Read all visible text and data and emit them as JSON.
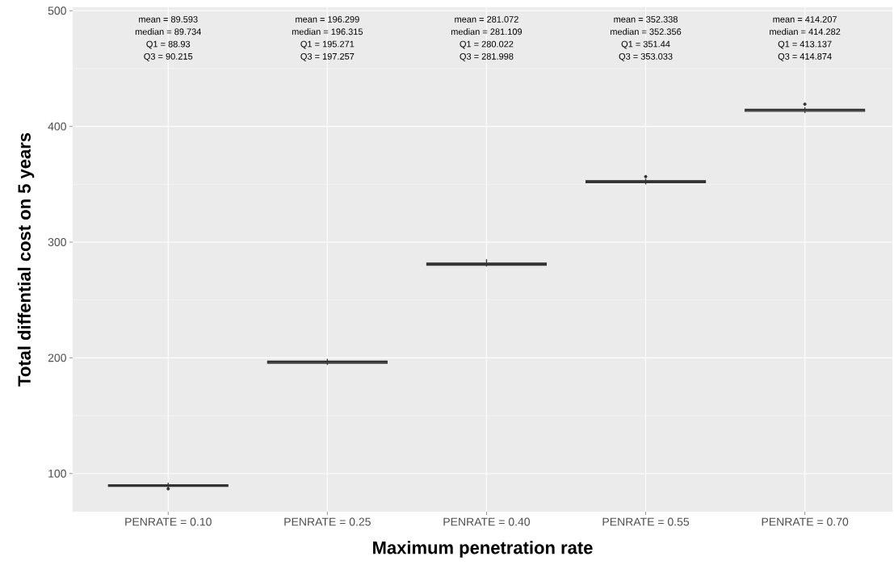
{
  "chart_data": {
    "type": "box",
    "xlabel": "Maximum penetration rate",
    "ylabel": "Total diffential cost on 5 years",
    "categories": [
      "PENRATE = 0.10",
      "PENRATE = 0.25",
      "PENRATE = 0.40",
      "PENRATE = 0.55",
      "PENRATE = 0.70"
    ],
    "boxes": [
      {
        "low": 87.9,
        "q1": 88.93,
        "median": 89.734,
        "q3": 90.215,
        "high": 92.1,
        "outliers": [
          86.8
        ]
      },
      {
        "low": 193.8,
        "q1": 195.271,
        "median": 196.315,
        "q3": 197.257,
        "high": 199.1
      },
      {
        "low": 278.9,
        "q1": 280.022,
        "median": 281.109,
        "q3": 281.998,
        "high": 285.2
      },
      {
        "low": 349.9,
        "q1": 351.44,
        "median": 352.356,
        "q3": 353.033,
        "high": 354.8,
        "outliers": [
          356.6
        ]
      },
      {
        "low": 411.6,
        "q1": 413.137,
        "median": 414.282,
        "q3": 414.874,
        "high": 416.6,
        "outliers": [
          419.2
        ]
      }
    ],
    "color": "#333333",
    "ylim": [
      67,
      503
    ],
    "yticks": [
      100,
      200,
      300,
      400,
      500
    ],
    "grid": true,
    "annotations": [
      "mean = 89.593",
      "median = 89.734",
      "Q1 = 88.93",
      "Q3 = 90.215",
      "mean = 196.299",
      "median = 196.315",
      "Q1 = 195.271",
      "Q3 = 197.257",
      "mean = 281.072",
      "median = 281.109",
      "Q1 = 280.022",
      "Q3 = 281.998",
      "mean = 352.338",
      "median = 352.356",
      "Q1 = 351.44",
      "Q3 = 353.033",
      "mean = 414.207",
      "median = 414.282",
      "Q1 = 413.137",
      "Q3 = 414.874"
    ]
  }
}
